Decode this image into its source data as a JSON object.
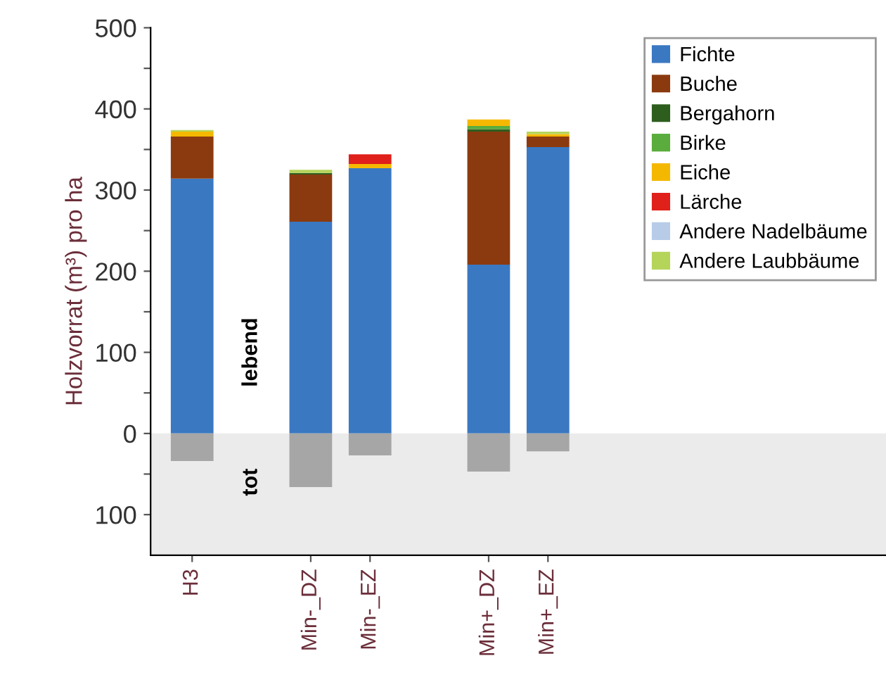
{
  "chart_data": {
    "type": "bar",
    "stacked": true,
    "ylabel": "Holzvorrat (m³) pro ha",
    "categories": [
      "H3",
      null,
      "Min-_DZ",
      "Min-_EZ",
      null,
      "Min+_DZ",
      "Min+_EZ"
    ],
    "series": [
      {
        "name": "Fichte",
        "color": "#3a78c2",
        "values": [
          314,
          null,
          261,
          327,
          null,
          208,
          353
        ]
      },
      {
        "name": "Buche",
        "color": "#8b3a0f",
        "values": [
          52,
          null,
          58,
          0,
          null,
          164,
          13
        ]
      },
      {
        "name": "Bergahorn",
        "color": "#2e5e1e",
        "values": [
          0,
          null,
          2,
          0,
          null,
          3,
          0
        ]
      },
      {
        "name": "Birke",
        "color": "#5aad3c",
        "values": [
          0,
          null,
          0,
          0,
          null,
          4,
          0
        ]
      },
      {
        "name": "Eiche",
        "color": "#f5b800",
        "values": [
          6,
          null,
          0,
          5,
          null,
          8,
          3
        ]
      },
      {
        "name": "Lärche",
        "color": "#e0201a",
        "values": [
          0,
          null,
          0,
          12,
          null,
          0,
          0
        ]
      },
      {
        "name": "Andere Nadelbäume",
        "color": "#b8cce8",
        "values": [
          0,
          null,
          0,
          0,
          null,
          0,
          0
        ]
      },
      {
        "name": "Andere Laubbäume",
        "color": "#b5d45a",
        "values": [
          2,
          null,
          4,
          0,
          null,
          0,
          3
        ]
      },
      {
        "color": "#a6a6a6",
        "values": [
          -34,
          null,
          -66,
          -27,
          null,
          -47,
          -22
        ]
      }
    ],
    "ylim": [
      -150,
      500
    ],
    "yticks": [
      {
        "value": -100,
        "label": "100"
      },
      {
        "value": -50,
        "label": null
      },
      0,
      {
        "value": 50,
        "label": null
      },
      100,
      {
        "value": 150,
        "label": null
      },
      200,
      {
        "value": 250,
        "label": null
      },
      300,
      {
        "value": 350,
        "label": null
      },
      400,
      {
        "value": 450,
        "label": null
      },
      500
    ],
    "bands": [
      {
        "axis": "y",
        "from": -150,
        "to": 0,
        "color": "#ebebeb"
      }
    ],
    "annotations": [
      "lebend",
      "tot"
    ],
    "grid": false,
    "legend": "top right"
  }
}
